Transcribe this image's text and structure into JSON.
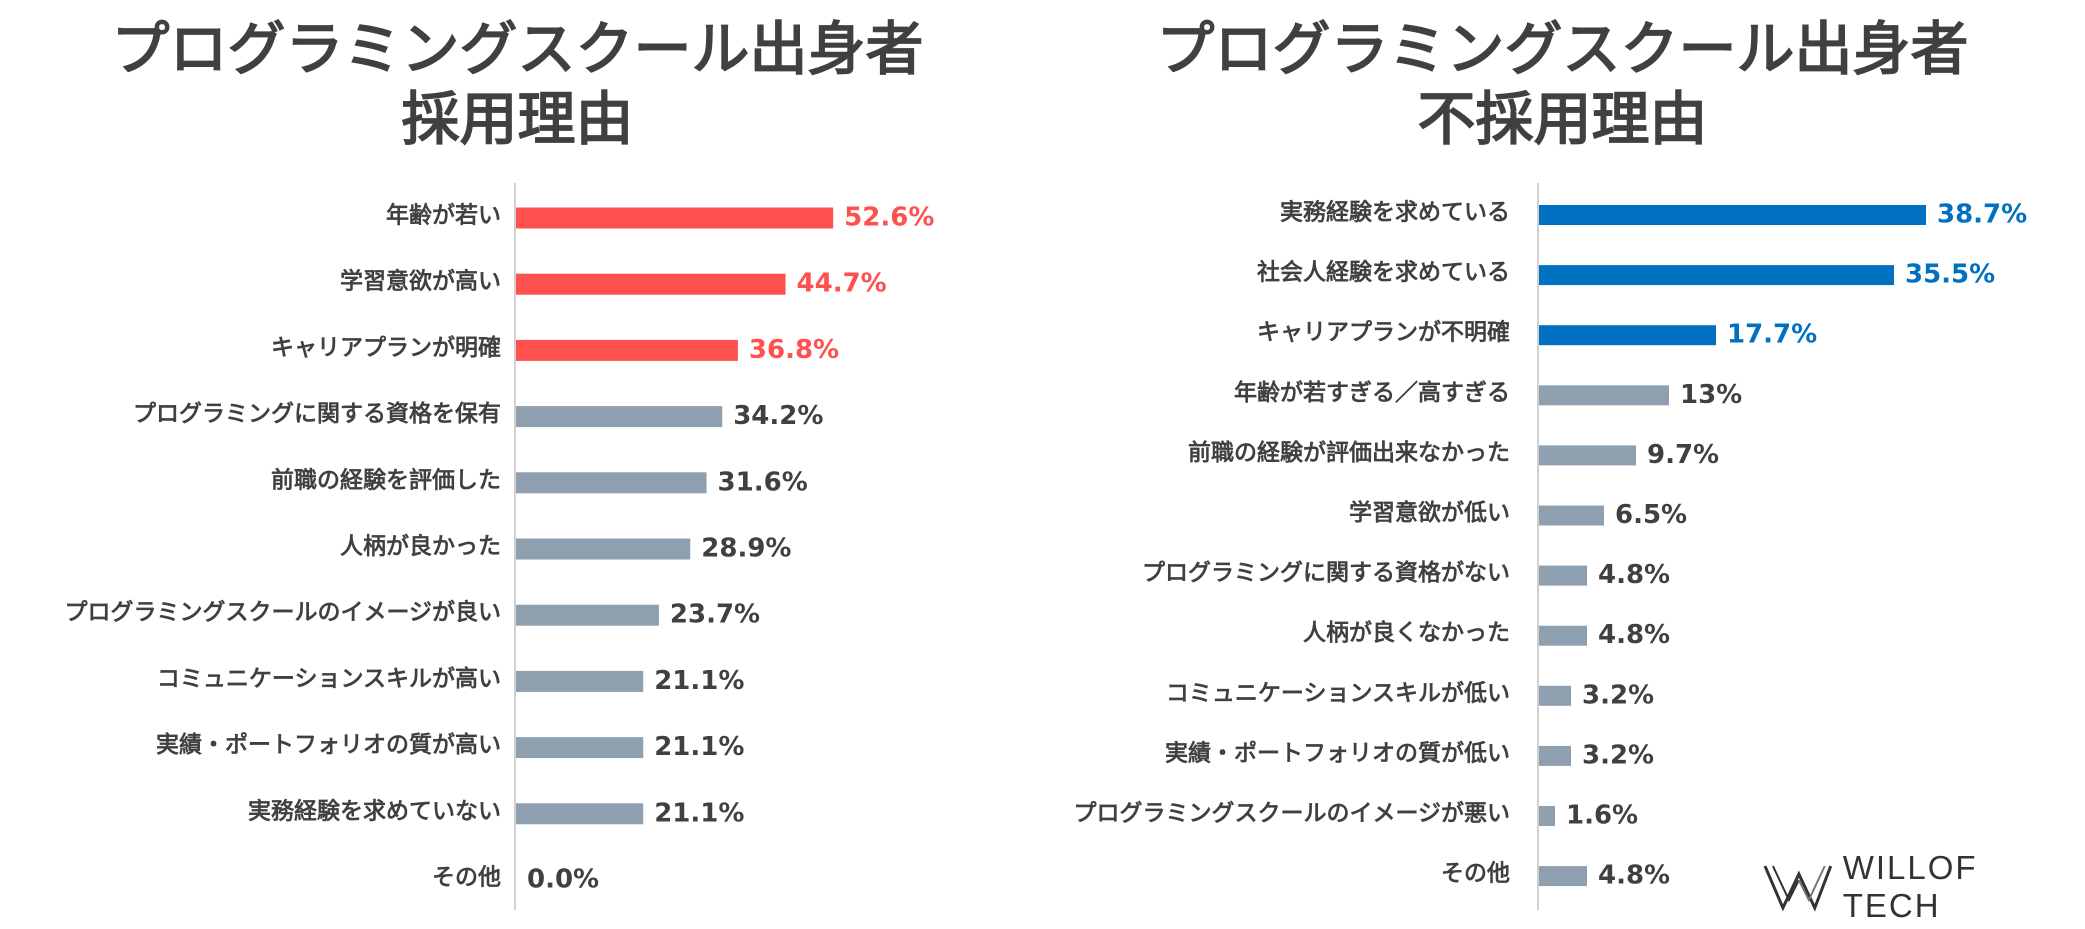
{
  "colors": {
    "highlight_left": "#FF5050",
    "highlight_right": "#0070C0",
    "base": "#8EA0B0",
    "axis": "#D0D0D0",
    "text": "#404040"
  },
  "logo": {
    "text": "WILLOF TECH",
    "icon": "willof-logo-icon"
  },
  "chart_data": [
    {
      "type": "bar",
      "orientation": "horizontal",
      "title": "プログラミングスクール出身者\n採用理由",
      "title_lines": [
        "プログラミングスクール出身者",
        "採用理由"
      ],
      "categories": [
        "年齢が若い",
        "学習意欲が高い",
        "キャリアプランが明確",
        "プログラミングに関する資格を保有",
        "前職の経験を評価した",
        "人柄が良かった",
        "プログラミングスクールのイメージが良い",
        "コミュニケーションスキルが高い",
        "実績・ポートフォリオの質が高い",
        "実務経験を求めていない",
        "その他"
      ],
      "values": [
        52.6,
        44.7,
        36.8,
        34.2,
        31.6,
        28.9,
        23.7,
        21.1,
        21.1,
        21.1,
        0.0
      ],
      "value_labels": [
        "52.6%",
        "44.7%",
        "36.8%",
        "34.2%",
        "31.6%",
        "28.9%",
        "23.7%",
        "21.1%",
        "21.1%",
        "21.1%",
        "0.0%"
      ],
      "highlight_count": 3,
      "xlim": [
        0,
        100
      ]
    },
    {
      "type": "bar",
      "orientation": "horizontal",
      "title": "プログラミングスクール出身者\n不採用理由",
      "title_lines": [
        "プログラミングスクール出身者",
        "不採用理由"
      ],
      "categories": [
        "実務経験を求めている",
        "社会人経験を求めている",
        "キャリアプランが不明確",
        "年齢が若すぎる／高すぎる",
        "前職の経験が評価出来なかった",
        "学習意欲が低い",
        "プログラミングに関する資格がない",
        "人柄が良くなかった",
        "コミュニケーションスキルが低い",
        "実績・ポートフォリオの質が低い",
        "プログラミングスクールのイメージが悪い",
        "その他"
      ],
      "values": [
        38.7,
        35.5,
        17.7,
        13,
        9.7,
        6.5,
        4.8,
        4.8,
        3.2,
        3.2,
        1.6,
        4.8
      ],
      "value_labels": [
        "38.7%",
        "35.5%",
        "17.7%",
        "13%",
        "9.7%",
        "6.5%",
        "4.8%",
        "4.8%",
        "3.2%",
        "3.2%",
        "1.6%",
        "4.8%"
      ],
      "highlight_count": 3,
      "xlim": [
        0,
        50
      ]
    }
  ]
}
